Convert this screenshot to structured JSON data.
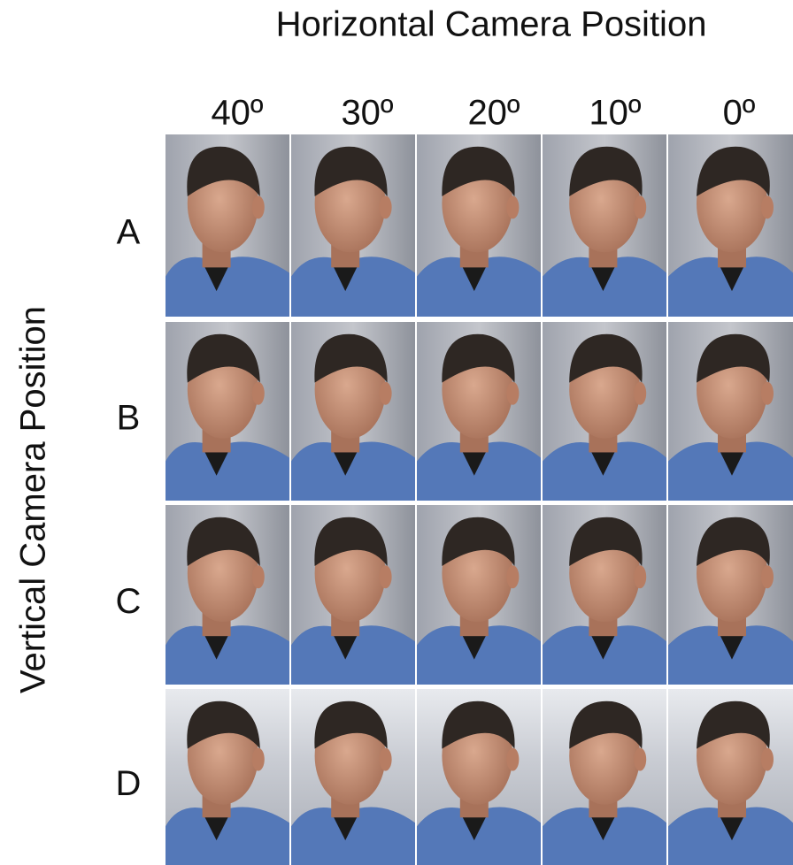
{
  "title": "Horizontal Camera Position",
  "vertical_label": "Vertical Camera Position",
  "columns": [
    "40º",
    "30º",
    "20º",
    "10º",
    "0º"
  ],
  "rows": [
    "A",
    "B",
    "C",
    "D"
  ]
}
